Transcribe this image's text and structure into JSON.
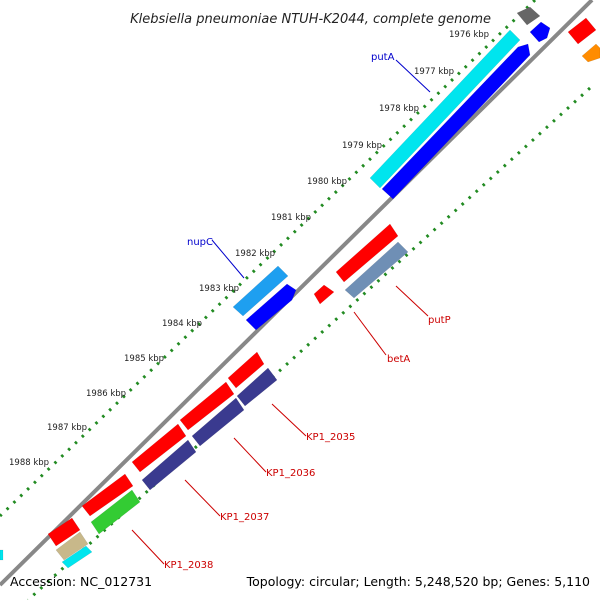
{
  "title": "Klebsiella pneumoniae NTUH-K2044, complete genome",
  "footer": {
    "accession": "Accession: NC_012731",
    "topology": "Topology: circular; Length: 5,248,520 bp; Genes: 5,110"
  },
  "ticks": [
    "1976 kbp",
    "1977 kbp",
    "1978 kbp",
    "1979 kbp",
    "1980 kbp",
    "1981 kbp",
    "1982 kbp",
    "1983 kbp",
    "1984 kbp",
    "1985 kbp",
    "1986 kbp",
    "1987 kbp",
    "1988 kbp"
  ],
  "gene_labels": [
    {
      "text": "putA",
      "color": "#0000cc"
    },
    {
      "text": "nupC",
      "color": "#0000cc"
    },
    {
      "text": "putP",
      "color": "#cc0000"
    },
    {
      "text": "betA",
      "color": "#cc0000"
    },
    {
      "text": "KP1_2035",
      "color": "#cc0000"
    },
    {
      "text": "KP1_2036",
      "color": "#cc0000"
    },
    {
      "text": "KP1_2037",
      "color": "#cc0000"
    },
    {
      "text": "KP1_2038",
      "color": "#cc0000"
    }
  ],
  "colors": {
    "backbone": "#888888",
    "tick_dots": "#228b22",
    "red": "#ff0000",
    "blue": "#0000ff",
    "cyan": "#00e5ee",
    "skyblue": "#1e9ff0",
    "navy": "#3a3a8f",
    "green": "#33cc33",
    "steel": "#6f8fb5",
    "khaki": "#c8b88a",
    "gray": "#666666",
    "orange": "#ff8c00"
  }
}
